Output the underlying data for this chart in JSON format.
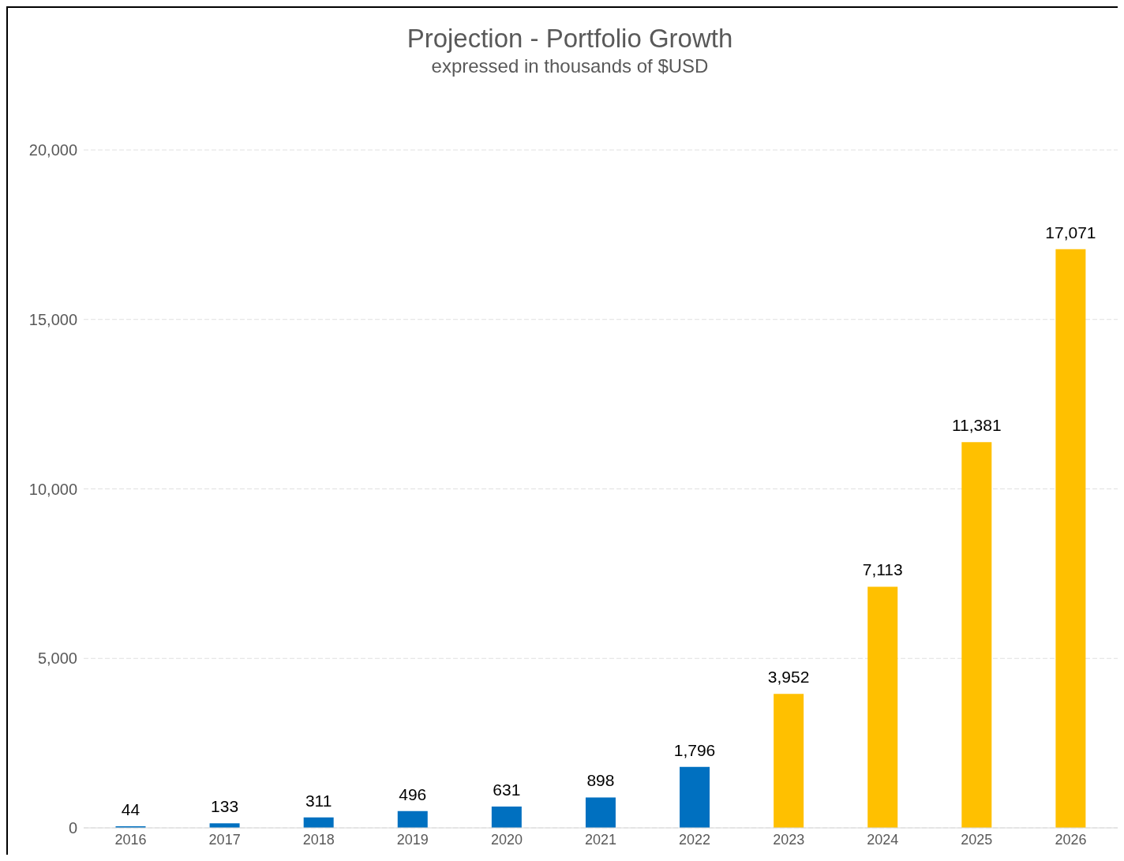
{
  "chart_data": {
    "type": "bar",
    "title": "Projection - Portfolio Growth",
    "subtitle": "expressed in thousands of $USD",
    "categories": [
      "2016",
      "2017",
      "2018",
      "2019",
      "2020",
      "2021",
      "2022",
      "2023",
      "2024",
      "2025",
      "2026"
    ],
    "values": [
      44,
      133,
      311,
      496,
      631,
      898,
      1796,
      3952,
      7113,
      11381,
      17071
    ],
    "colors": [
      "#0070c0",
      "#0070c0",
      "#0070c0",
      "#0070c0",
      "#0070c0",
      "#0070c0",
      "#0070c0",
      "#ffc000",
      "#ffc000",
      "#ffc000",
      "#ffc000"
    ],
    "value_labels": [
      "44",
      "133",
      "311",
      "496",
      "631",
      "898",
      "1,796",
      "3,952",
      "7,113",
      "11,381",
      "17,071"
    ],
    "ylim": [
      0,
      20000
    ],
    "yticks": [
      {
        "value": 0,
        "label": "0"
      },
      {
        "value": 5000,
        "label": "5,000"
      },
      {
        "value": 10000,
        "label": "10,000"
      },
      {
        "value": 15000,
        "label": "15,000"
      },
      {
        "value": 20000,
        "label": "20,000"
      }
    ],
    "grid": "y",
    "legend": false
  }
}
